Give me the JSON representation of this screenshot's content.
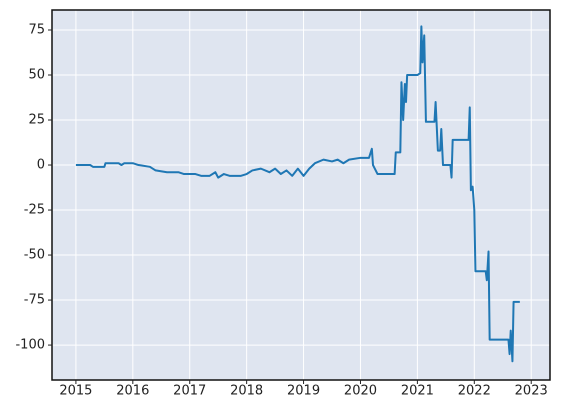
{
  "chart_data": {
    "type": "line",
    "x": [
      2015.0,
      2015.25,
      2015.3,
      2015.5,
      2015.52,
      2015.75,
      2015.8,
      2015.85,
      2016.0,
      2016.1,
      2016.3,
      2016.4,
      2016.6,
      2016.8,
      2016.9,
      2017.1,
      2017.2,
      2017.35,
      2017.45,
      2017.5,
      2017.6,
      2017.7,
      2017.9,
      2018.0,
      2018.1,
      2018.25,
      2018.4,
      2018.5,
      2018.6,
      2018.7,
      2018.8,
      2018.9,
      2019.0,
      2019.1,
      2019.2,
      2019.35,
      2019.5,
      2019.6,
      2019.7,
      2019.8,
      2020.0,
      2020.15,
      2020.2,
      2020.22,
      2020.3,
      2020.6,
      2020.62,
      2020.7,
      2020.72,
      2020.75,
      2020.78,
      2020.8,
      2020.82,
      2021.0,
      2021.05,
      2021.07,
      2021.09,
      2021.12,
      2021.15,
      2021.3,
      2021.32,
      2021.36,
      2021.4,
      2021.42,
      2021.45,
      2021.58,
      2021.6,
      2021.62,
      2021.9,
      2021.92,
      2021.94,
      2021.97,
      2022.0,
      2022.02,
      2022.2,
      2022.22,
      2022.25,
      2022.27,
      2022.6,
      2022.62,
      2022.64,
      2022.67,
      2022.69,
      2022.8
    ],
    "series": [
      {
        "color": "#1f77b4",
        "values": [
          0,
          0,
          -1,
          -1,
          1,
          1,
          0,
          1,
          1,
          0,
          -1,
          -3,
          -4,
          -4,
          -5,
          -5,
          -6,
          -6,
          -4,
          -7,
          -5,
          -6,
          -6,
          -5,
          -3,
          -2,
          -4,
          -2,
          -5,
          -3,
          -6,
          -2,
          -6,
          -2,
          1,
          3,
          2,
          3,
          1,
          3,
          4,
          4,
          9,
          0,
          -5,
          -5,
          7,
          7,
          46,
          25,
          45,
          35,
          50,
          50,
          51,
          77,
          57,
          72,
          24,
          24,
          35,
          8,
          8,
          20,
          0,
          0,
          -7,
          14,
          14,
          32,
          -14,
          -12,
          -25,
          -59,
          -59,
          -64,
          -48,
          -97,
          -97,
          -105,
          -92,
          -109,
          -76,
          -76
        ]
      }
    ],
    "xlim": [
      2014.58,
      2023.33
    ],
    "xticks": [
      2015,
      2016,
      2017,
      2018,
      2019,
      2020,
      2021,
      2022,
      2023
    ],
    "ylim": [
      -119.4,
      86.1
    ],
    "yticks": [
      -100,
      -75,
      -50,
      -25,
      0,
      25,
      50,
      75
    ],
    "grid": true
  }
}
